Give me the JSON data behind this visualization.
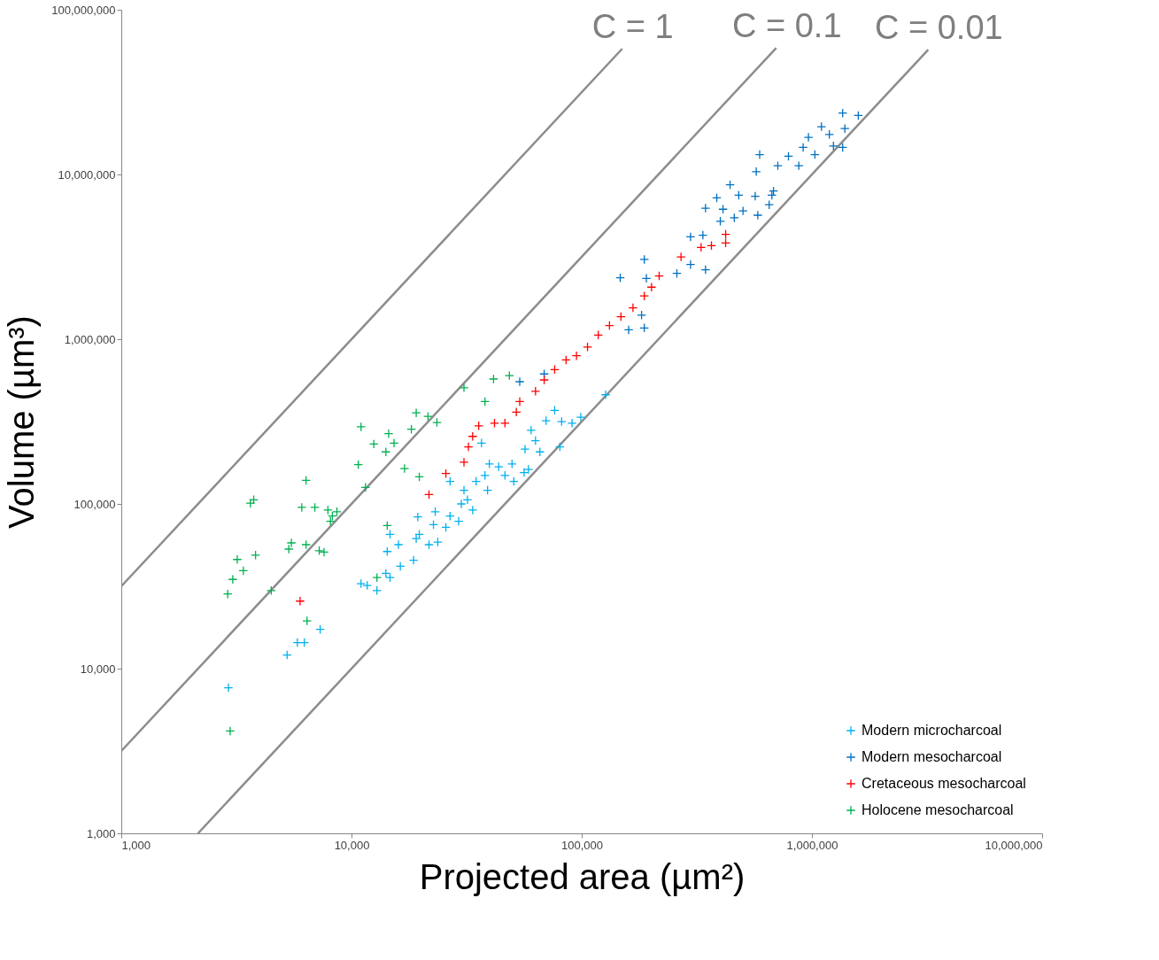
{
  "chart_data": {
    "type": "scatter",
    "xlabel": "Projected area (µm²)",
    "ylabel": "Volume (µm³)",
    "log": "xy",
    "grid": false,
    "legend": "bottom right",
    "marker": "cross",
    "xlim": [
      1000,
      10000000
    ],
    "xticks": [
      {
        "value": 1000,
        "label": "1,000"
      },
      {
        "value": 10000,
        "label": "10,000"
      },
      {
        "value": 100000,
        "label": "100,000"
      },
      {
        "value": 1000000,
        "label": "1,000,000"
      },
      {
        "value": 10000000,
        "label": "10,000,000"
      }
    ],
    "ylim": [
      1000,
      100000000
    ],
    "yticks": [
      {
        "value": 1000,
        "label": "1,000"
      },
      {
        "value": 10000,
        "label": "10,000"
      },
      {
        "value": 100000,
        "label": "100,000"
      },
      {
        "value": 1000000,
        "label": "1,000,000"
      },
      {
        "value": 10000000,
        "label": "10,000,000"
      },
      {
        "value": 100000000,
        "label": "100,000,000"
      }
    ],
    "annotations": [
      "C = 1",
      "C = 0.1",
      "C = 0.01"
    ],
    "series": [
      {
        "type": "line",
        "color": "#8c8c8c",
        "line_style": "solid",
        "marker": "none",
        "x": [
          1000,
          150000
        ],
        "values": [
          31623,
          58000000
        ]
      },
      {
        "type": "line",
        "color": "#8c8c8c",
        "line_style": "solid",
        "marker": "none",
        "x": [
          1000,
          700000
        ],
        "values": [
          3162,
          58600000
        ]
      },
      {
        "type": "line",
        "color": "#8c8c8c",
        "line_style": "solid",
        "marker": "none",
        "x": [
          2154,
          3200000
        ],
        "values": [
          1000,
          57200000
        ]
      },
      {
        "name": "Modern microcharcoal",
        "color": "#00b0f0",
        "x": [
          2920,
          5250,
          5820,
          6240,
          7310,
          11000,
          11700,
          12900,
          14100,
          14700,
          16300,
          18600,
          14300,
          16000,
          14700,
          19100,
          19700,
          21700,
          23700,
          19400,
          22700,
          23100,
          25700,
          26800,
          29200,
          30000,
          31900,
          33600,
          30800,
          34800,
          26800,
          38000,
          39000,
          36700,
          39700,
          43600,
          46400,
          49800,
          50700,
          56200,
          56700,
          60300,
          63000,
          65800,
          70000,
          76300,
          81800,
          90800,
          99100,
          58700,
          80400,
          127000
        ],
        "values": [
          7660,
          12100,
          14400,
          14400,
          17300,
          32800,
          32000,
          29800,
          37900,
          35700,
          41800,
          45500,
          51400,
          56600,
          65400,
          61600,
          65400,
          56600,
          58700,
          83400,
          74800,
          89700,
          72100,
          84400,
          78500,
          100000,
          106000,
          91800,
          121000,
          137000,
          137000,
          149000,
          121000,
          234000,
          175000,
          168000,
          149000,
          175000,
          137000,
          155000,
          215000,
          280000,
          242000,
          207000,
          320000,
          370000,
          316000,
          309000,
          336000,
          162000,
          222000,
          460000
        ]
      },
      {
        "name": "Modern mesocharcoal",
        "color": "#0070c0",
        "x": [
          53800,
          68700,
          147000,
          187000,
          191000,
          160000,
          187000,
          182000,
          259000,
          297000,
          345000,
          297000,
          336000,
          345000,
          386000,
          411000,
          400000,
          441000,
          460000,
          481000,
          502000,
          567000,
          573000,
          582000,
          652000,
          681000,
          670000,
          593000,
          711000,
          791000,
          877000,
          916000,
          966000,
          1030000,
          1100000,
          1190000,
          1240000,
          1360000,
          1390000,
          1360000,
          1590000
        ],
        "values": [
          552000,
          615000,
          2360000,
          3050000,
          2340000,
          1140000,
          1170000,
          1400000,
          2510000,
          2840000,
          2640000,
          4180000,
          4280000,
          6240000,
          7210000,
          6150000,
          5200000,
          8650000,
          5460000,
          7480000,
          6010000,
          7380000,
          10400000,
          5660000,
          6550000,
          7940000,
          7480000,
          13200000,
          11300000,
          12900000,
          11300000,
          14600000,
          16800000,
          13200000,
          19500000,
          17500000,
          14900000,
          23600000,
          19000000,
          14600000,
          22800000
        ]
      },
      {
        "name": "Cretaceous mesocharcoal",
        "color": "#ff0000",
        "x": [
          5980,
          21700,
          25700,
          30800,
          32200,
          33600,
          35700,
          41800,
          46400,
          52000,
          53800,
          63000,
          68700,
          76300,
          85500,
          94900,
          106000,
          118000,
          132000,
          148000,
          167000,
          187000,
          201000,
          217000,
          270000,
          330000,
          366000,
          422000,
          422000
        ],
        "values": [
          25700,
          114000,
          153000,
          179000,
          222000,
          257000,
          298000,
          309000,
          309000,
          361000,
          418000,
          483000,
          566000,
          654000,
          748000,
          794000,
          897000,
          1060000,
          1210000,
          1370000,
          1550000,
          1830000,
          2070000,
          2420000,
          3160000,
          3610000,
          3700000,
          4330000,
          3840000
        ]
      },
      {
        "name": "Holocene mesocharcoal",
        "color": "#00b050",
        "x": [
          2900,
          3050,
          3190,
          3390,
          3830,
          3640,
          3760,
          4480,
          5480,
          5340,
          6080,
          6930,
          6350,
          7240,
          7600,
          7900,
          8260,
          8640,
          8100,
          6410,
          2970,
          6350,
          10700,
          11000,
          11500,
          12500,
          14100,
          14500,
          15300,
          18200,
          19100,
          21500,
          23500,
          17000,
          19700,
          14300,
          12900,
          30800,
          38000,
          41400,
          48500
        ],
        "values": [
          28400,
          34800,
          46000,
          39300,
          48900,
          101000,
          106000,
          29800,
          58000,
          53200,
          95300,
          95300,
          56600,
          52000,
          51000,
          91800,
          84400,
          89700,
          78500,
          19500,
          4180,
          139000,
          173000,
          294000,
          126000,
          231000,
          207000,
          267000,
          234000,
          284000,
          357000,
          340000,
          312000,
          164000,
          146000,
          73900,
          35700,
          507000,
          418000,
          573000,
          601000
        ]
      }
    ]
  }
}
